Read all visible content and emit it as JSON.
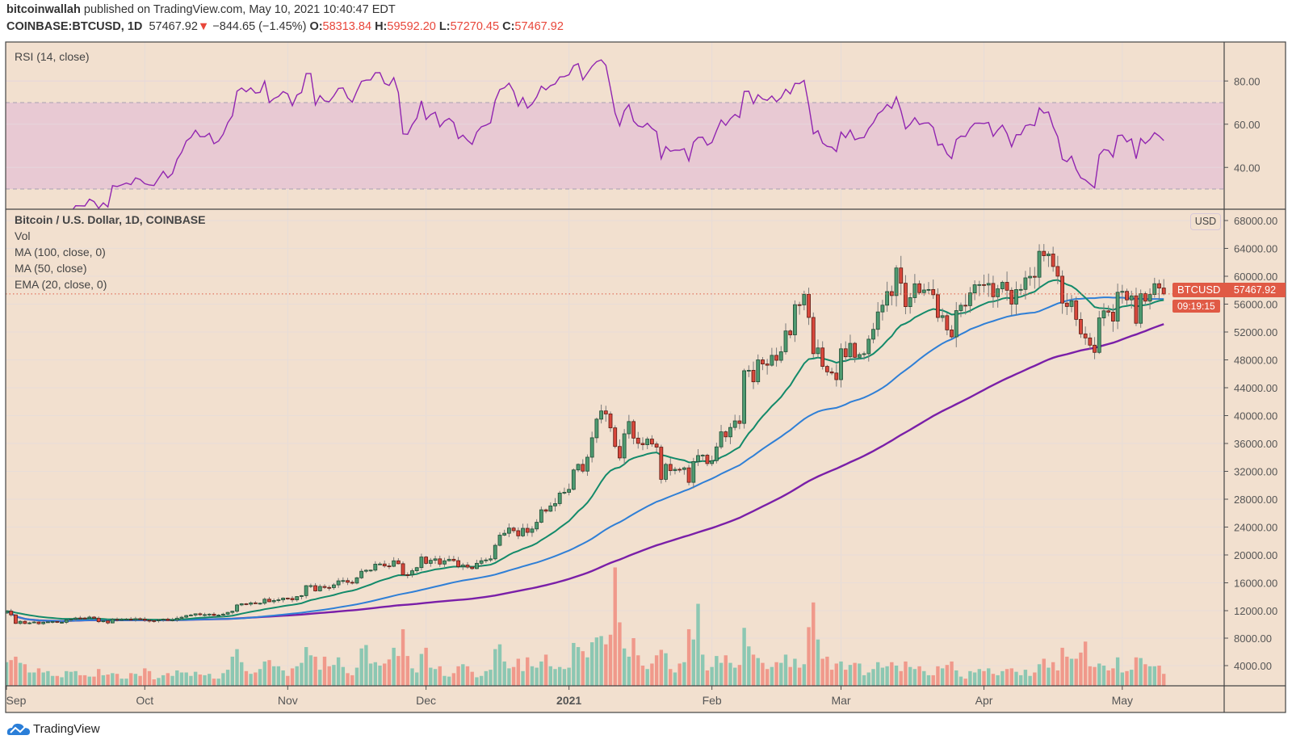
{
  "header": {
    "author": "bitcoinwallah",
    "published": "published on TradingView.com, May 10, 2021 10:40:47 EDT",
    "symbol": "COINBASE:BTCUSD, 1D",
    "last": "57467.92",
    "change": "−844.65 (−1.45%)",
    "o_label": "O:",
    "o": "58313.84",
    "h_label": "H:",
    "h": "59592.20",
    "l_label": "L:",
    "l": "57270.45",
    "c_label": "C:",
    "c": "57467.92",
    "down_arrow_icon": "triangle-down"
  },
  "legend": {
    "rsi": "RSI (14, close)",
    "title": "Bitcoin / U.S. Dollar, 1D, COINBASE",
    "vol": "Vol",
    "ma100": "MA (100, close, 0)",
    "ma50": "MA (50, close)",
    "ema20": "EMA (20, close, 0)"
  },
  "price_tag": {
    "name": "BTCUSD",
    "price": "57467.92",
    "countdown": "09:19:15"
  },
  "currency": "USD",
  "footer": {
    "brand": "TradingView"
  },
  "colors": {
    "background": "#f2e0cf",
    "up": "#4e9a70",
    "down": "#d9483c",
    "ema20": "#138a6a",
    "ma50": "#2f7fd6",
    "ma100": "#7a1fa8",
    "rsi": "#9125b0",
    "rsi_band": "#e8c9d3",
    "vol_up": "#8cc7b2",
    "vol_down": "#f0998b"
  },
  "chart_data": [
    {
      "type": "line",
      "name": "RSI (14, close)",
      "yticks": [
        "80.00",
        "60.00",
        "40.00"
      ],
      "ylim": [
        22,
        97
      ],
      "bands": [
        30,
        70
      ]
    },
    {
      "type": "candlestick",
      "title": "Bitcoin / U.S. Dollar, 1D, COINBASE",
      "xticks": [
        "Sep",
        "Oct",
        "Nov",
        "Dec",
        "2021",
        "Feb",
        "Mar",
        "Apr",
        "May"
      ],
      "yticks": [
        "68000.00",
        "64000.00",
        "60000.00",
        "56000.00",
        "52000.00",
        "48000.00",
        "44000.00",
        "40000.00",
        "36000.00",
        "32000.00",
        "28000.00",
        "24000.00",
        "20000.00",
        "16000.00",
        "12000.00",
        "8000.00",
        "4000.00"
      ],
      "first_open": 11650,
      "last_candle": {
        "open": 58313.84,
        "high": 59592.2,
        "low": 57270.45,
        "close": 57467.92
      },
      "closes": [
        11930,
        11400,
        10170,
        10470,
        10160,
        10250,
        10370,
        10130,
        10340,
        10390,
        10440,
        10330,
        10330,
        10680,
        10790,
        10950,
        10940,
        10930,
        11080,
        10920,
        10420,
        10540,
        10240,
        10740,
        10690,
        10730,
        10770,
        10700,
        10840,
        10780,
        10620,
        10570,
        10550,
        10670,
        10790,
        10600,
        10670,
        10920,
        11060,
        11300,
        11380,
        11550,
        11430,
        11430,
        11500,
        11320,
        11370,
        11500,
        11750,
        11920,
        12820,
        12990,
        12930,
        13120,
        13040,
        13070,
        13650,
        13280,
        13460,
        13560,
        13800,
        13760,
        13560,
        14030,
        14160,
        15590,
        15590,
        14840,
        15480,
        15330,
        15310,
        15700,
        16280,
        16320,
        16070,
        15960,
        16720,
        17660,
        17800,
        17820,
        18680,
        18700,
        18420,
        18370,
        19160,
        18740,
        17160,
        17140,
        17730,
        18180,
        19700,
        18790,
        19230,
        19440,
        18690,
        19160,
        19380,
        19180,
        18320,
        18550,
        18260,
        18040,
        18800,
        19170,
        19280,
        19440,
        21380,
        22840,
        23110,
        23860,
        23480,
        22740,
        23820,
        23240,
        23730,
        24690,
        26480,
        26280,
        27040,
        27370,
        28880,
        28990,
        29410,
        32200,
        33000,
        32030,
        34030,
        36820,
        39490,
        40670,
        40240,
        38240,
        35570,
        33920,
        37390,
        39150,
        36770,
        36010,
        35820,
        36630,
        35920,
        35470,
        30850,
        33000,
        32100,
        32290,
        32260,
        32500,
        30420,
        33400,
        34270,
        34320,
        33110,
        33530,
        35510,
        37670,
        36950,
        38300,
        39240,
        38880,
        46440,
        46500,
        44850,
        48000,
        47410,
        47230,
        48650,
        47940,
        49160,
        52150,
        51590,
        55920,
        55890,
        57410,
        54090,
        48890,
        49710,
        47060,
        46280,
        46110,
        45160,
        49590,
        48440,
        50370,
        48370,
        48760,
        48880,
        50970,
        52380,
        54880,
        55850,
        57800,
        57230,
        61190,
        59000,
        55640,
        56930,
        58920,
        57650,
        58030,
        58100,
        57350,
        54080,
        54340,
        52300,
        51300,
        55070,
        55840,
        55780,
        57610,
        58780,
        58800,
        58740,
        58970,
        57060,
        58200,
        59130,
        57990,
        56000,
        58090,
        58110,
        59770,
        59990,
        59860,
        63580,
        62950,
        63200,
        61400,
        60010,
        56150,
        55660,
        56470,
        53810,
        51730,
        51150,
        50110,
        49070,
        54020,
        55040,
        54850,
        53560,
        57700,
        57830,
        56610,
        57190,
        53250,
        57500,
        56430,
        57380,
        58930,
        58310,
        57467.92
      ],
      "volume_thousands": [
        4.5,
        4.8,
        5.3,
        4.4,
        4.2,
        3,
        3,
        3.6,
        3,
        3.2,
        2.5,
        2.5,
        2.3,
        3.2,
        3.1,
        3.2,
        2.6,
        2.6,
        2.4,
        2.4,
        3.5,
        2.6,
        2.7,
        2.9,
        2.8,
        2.1,
        2.1,
        2.9,
        2.8,
        2.5,
        3.6,
        3.2,
        2,
        2.2,
        2.6,
        2.9,
        2.5,
        3.3,
        3,
        3,
        2.5,
        3.1,
        2.7,
        2.6,
        2.8,
        2.1,
        2.1,
        2.9,
        3.4,
        5.3,
        6.4,
        4.5,
        3.2,
        2.8,
        3,
        3.5,
        4.6,
        4.8,
        3.9,
        3.9,
        3.3,
        2.5,
        3.6,
        3.9,
        4.4,
        6.7,
        5.5,
        5.3,
        3.4,
        5.3,
        3.9,
        4.1,
        5.2,
        3.8,
        2.9,
        2.6,
        3.7,
        6.5,
        7,
        4.3,
        4.5,
        4,
        4.3,
        4.9,
        6.6,
        5.4,
        9.3,
        5.4,
        3.6,
        3,
        5.7,
        6.6,
        3.7,
        3.5,
        3.9,
        2.5,
        2.4,
        2.9,
        3.9,
        4.2,
        3.9,
        3.1,
        2.3,
        2.5,
        3.2,
        3.4,
        6.4,
        7.1,
        4.6,
        3.6,
        3.8,
        5,
        3.2,
        5.2,
        3.9,
        3.7,
        4.6,
        5.6,
        3.9,
        3.5,
        3.8,
        3.5,
        3.7,
        7.3,
        6.7,
        6.1,
        5.2,
        7.4,
        8.1,
        8.3,
        7.1,
        8.5,
        18.3,
        10.3,
        6.5,
        5.3,
        8,
        5.5,
        4,
        3.5,
        4.3,
        5.5,
        6.3,
        5.8,
        3.5,
        3,
        4.3,
        4.5,
        9.3,
        7.8,
        13,
        5.6,
        3.3,
        3.8,
        5.4,
        4.4,
        5.5,
        4.4,
        3.7,
        4.1,
        9.5,
        6.8,
        5.6,
        5.1,
        4.4,
        3.5,
        3.8,
        4.5,
        4.4,
        5.6,
        3.8,
        5,
        3.7,
        4.2,
        9.6,
        13.2,
        7.8,
        5,
        5.3,
        3.4,
        4.3,
        4.6,
        3.4,
        4.1,
        4.4,
        4.3,
        2.6,
        3,
        3.5,
        4.5,
        3.7,
        3.9,
        4.5,
        4,
        3.2,
        4.6,
        3.8,
        3.5,
        3.9,
        3.2,
        2.6,
        2.6,
        3.9,
        3.6,
        4.1,
        4.6,
        3.3,
        2.4,
        2.1,
        3.2,
        3,
        3.5,
        3.2,
        3.6,
        2.8,
        2.6,
        3.2,
        3.5,
        3.6,
        3.1,
        2.6,
        3.4,
        2.5,
        3,
        4.2,
        5,
        3.7,
        4.5,
        3.3,
        6.6,
        5.3,
        5,
        5,
        5.9,
        7.5,
        3.9,
        3.8,
        4.3,
        4,
        3.3,
        3.6,
        5.2,
        3,
        3.2,
        3.4,
        5.2,
        5.1,
        4.2,
        3.9,
        3.9,
        4,
        2.8
      ],
      "overlays": [
        "EMA 20",
        "MA 50",
        "MA 100"
      ],
      "grid": true
    }
  ]
}
